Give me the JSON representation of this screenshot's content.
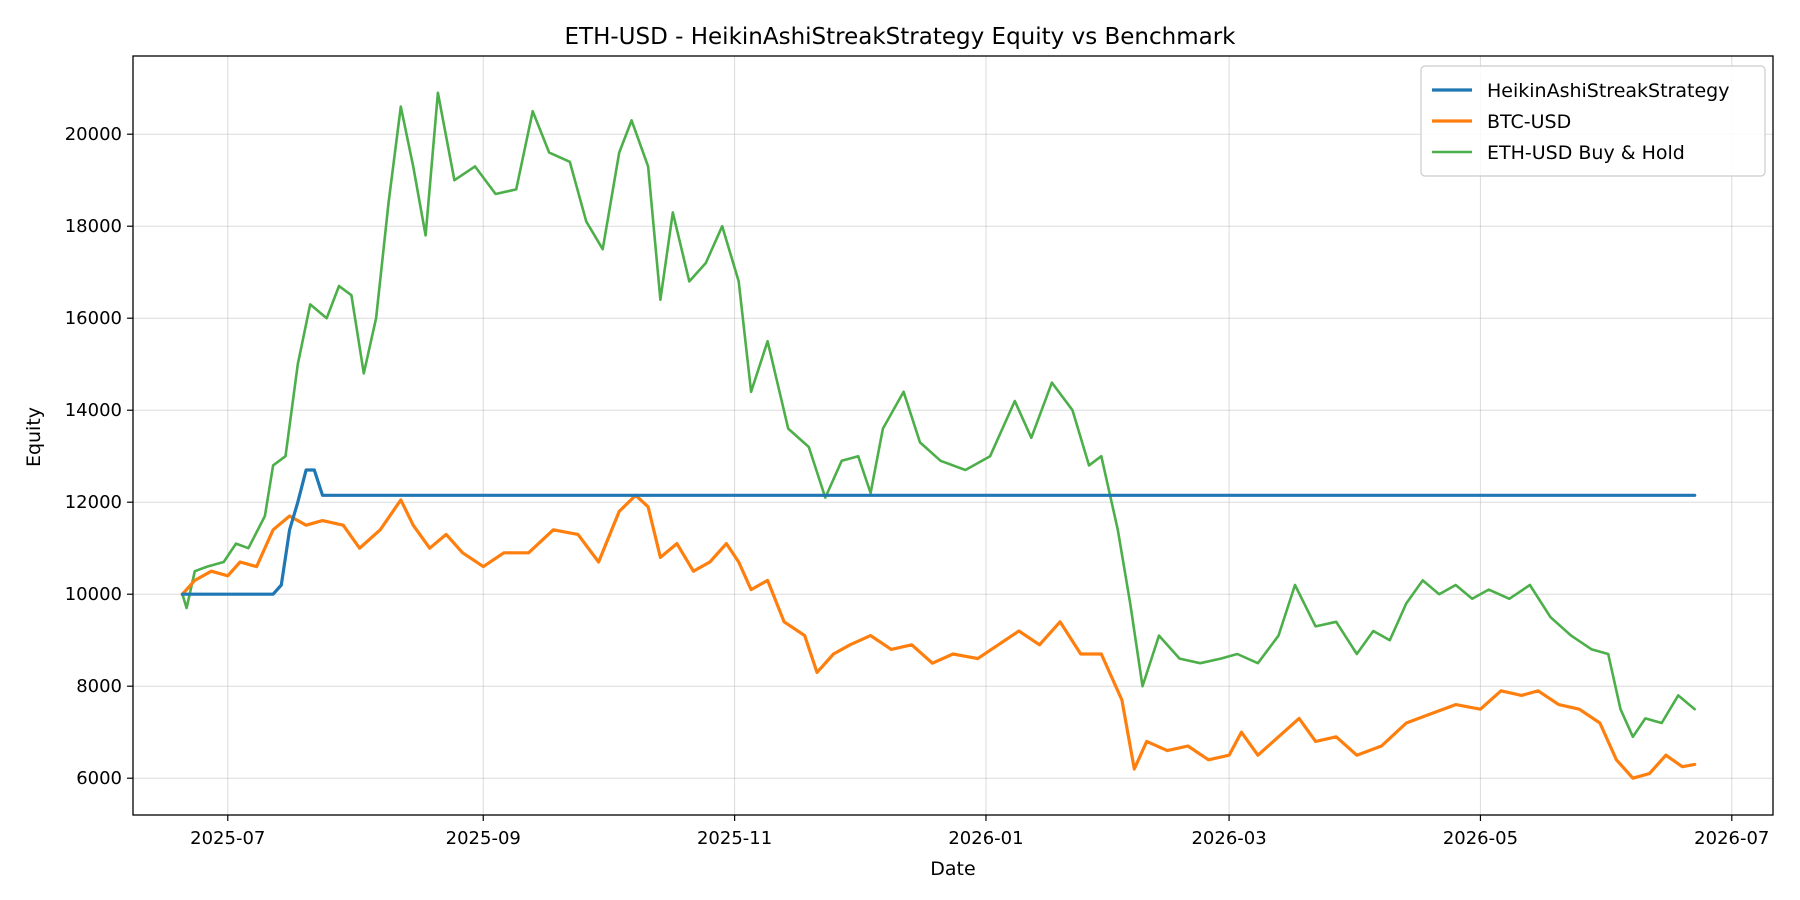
{
  "chart_data": {
    "type": "line",
    "title": "ETH-USD - HeikinAshiStreakStrategy Equity vs Benchmark",
    "xlabel": "Date",
    "ylabel": "Equity",
    "x_range": [
      "2025-06-08",
      "2026-07-11"
    ],
    "ylim": [
      5200,
      21700
    ],
    "x_ticks": [
      "2025-07",
      "2025-09",
      "2025-11",
      "2026-01",
      "2026-03",
      "2026-05",
      "2026-07"
    ],
    "y_ticks": [
      6000,
      8000,
      10000,
      12000,
      14000,
      16000,
      18000,
      20000
    ],
    "grid": true,
    "legend_position": "top-right",
    "colors": {
      "strategy": "#1f77b4",
      "btc": "#ff7f0e",
      "eth": "#4daf4a"
    },
    "series": [
      {
        "name": "HeikinAshiStreakStrategy",
        "color": "#1f77b4",
        "points": [
          [
            "2025-06-20",
            10000
          ],
          [
            "2025-07-12",
            10000
          ],
          [
            "2025-07-14",
            10200
          ],
          [
            "2025-07-16",
            11400
          ],
          [
            "2025-07-18",
            12000
          ],
          [
            "2025-07-20",
            12700
          ],
          [
            "2025-07-22",
            12700
          ],
          [
            "2025-07-24",
            12150
          ],
          [
            "2026-06-22",
            12150
          ]
        ]
      },
      {
        "name": "BTC-USD",
        "color": "#ff7f0e",
        "points": [
          [
            "2025-06-20",
            10000
          ],
          [
            "2025-06-23",
            10300
          ],
          [
            "2025-06-27",
            10500
          ],
          [
            "2025-07-01",
            10400
          ],
          [
            "2025-07-04",
            10700
          ],
          [
            "2025-07-08",
            10600
          ],
          [
            "2025-07-12",
            11400
          ],
          [
            "2025-07-16",
            11700
          ],
          [
            "2025-07-20",
            11500
          ],
          [
            "2025-07-24",
            11600
          ],
          [
            "2025-07-29",
            11500
          ],
          [
            "2025-08-02",
            11000
          ],
          [
            "2025-08-07",
            11400
          ],
          [
            "2025-08-12",
            12050
          ],
          [
            "2025-08-15",
            11500
          ],
          [
            "2025-08-19",
            11000
          ],
          [
            "2025-08-23",
            11300
          ],
          [
            "2025-08-27",
            10900
          ],
          [
            "2025-09-01",
            10600
          ],
          [
            "2025-09-06",
            10900
          ],
          [
            "2025-09-12",
            10900
          ],
          [
            "2025-09-18",
            11400
          ],
          [
            "2025-09-24",
            11300
          ],
          [
            "2025-09-29",
            10700
          ],
          [
            "2025-10-04",
            11800
          ],
          [
            "2025-10-08",
            12150
          ],
          [
            "2025-10-11",
            11900
          ],
          [
            "2025-10-14",
            10800
          ],
          [
            "2025-10-18",
            11100
          ],
          [
            "2025-10-22",
            10500
          ],
          [
            "2025-10-26",
            10700
          ],
          [
            "2025-10-30",
            11100
          ],
          [
            "2025-11-02",
            10700
          ],
          [
            "2025-11-05",
            10100
          ],
          [
            "2025-11-09",
            10300
          ],
          [
            "2025-11-13",
            9400
          ],
          [
            "2025-11-18",
            9100
          ],
          [
            "2025-11-21",
            8300
          ],
          [
            "2025-11-25",
            8700
          ],
          [
            "2025-11-29",
            8900
          ],
          [
            "2025-12-04",
            9100
          ],
          [
            "2025-12-09",
            8800
          ],
          [
            "2025-12-14",
            8900
          ],
          [
            "2025-12-19",
            8500
          ],
          [
            "2025-12-24",
            8700
          ],
          [
            "2025-12-30",
            8600
          ],
          [
            "2026-01-04",
            8900
          ],
          [
            "2026-01-09",
            9200
          ],
          [
            "2026-01-14",
            8900
          ],
          [
            "2026-01-19",
            9400
          ],
          [
            "2026-01-24",
            8700
          ],
          [
            "2026-01-29",
            8700
          ],
          [
            "2026-02-03",
            7700
          ],
          [
            "2026-02-06",
            6200
          ],
          [
            "2026-02-09",
            6800
          ],
          [
            "2026-02-14",
            6600
          ],
          [
            "2026-02-19",
            6700
          ],
          [
            "2026-02-24",
            6400
          ],
          [
            "2026-03-01",
            6500
          ],
          [
            "2026-03-04",
            7000
          ],
          [
            "2026-03-08",
            6500
          ],
          [
            "2026-03-13",
            6900
          ],
          [
            "2026-03-18",
            7300
          ],
          [
            "2026-03-22",
            6800
          ],
          [
            "2026-03-27",
            6900
          ],
          [
            "2026-04-01",
            6500
          ],
          [
            "2026-04-07",
            6700
          ],
          [
            "2026-04-13",
            7200
          ],
          [
            "2026-04-19",
            7400
          ],
          [
            "2026-04-25",
            7600
          ],
          [
            "2026-05-01",
            7500
          ],
          [
            "2026-05-06",
            7900
          ],
          [
            "2026-05-11",
            7800
          ],
          [
            "2026-05-15",
            7900
          ],
          [
            "2026-05-20",
            7600
          ],
          [
            "2026-05-25",
            7500
          ],
          [
            "2026-05-30",
            7200
          ],
          [
            "2026-06-03",
            6400
          ],
          [
            "2026-06-07",
            6000
          ],
          [
            "2026-06-11",
            6100
          ],
          [
            "2026-06-15",
            6500
          ],
          [
            "2026-06-19",
            6250
          ],
          [
            "2026-06-22",
            6300
          ]
        ]
      },
      {
        "name": "ETH-USD Buy & Hold",
        "color": "#4daf4a",
        "points": [
          [
            "2025-06-20",
            10000
          ],
          [
            "2025-06-21",
            9700
          ],
          [
            "2025-06-23",
            10500
          ],
          [
            "2025-06-26",
            10600
          ],
          [
            "2025-06-30",
            10700
          ],
          [
            "2025-07-03",
            11100
          ],
          [
            "2025-07-06",
            11000
          ],
          [
            "2025-07-10",
            11700
          ],
          [
            "2025-07-12",
            12800
          ],
          [
            "2025-07-15",
            13000
          ],
          [
            "2025-07-18",
            15000
          ],
          [
            "2025-07-21",
            16300
          ],
          [
            "2025-07-25",
            16000
          ],
          [
            "2025-07-28",
            16700
          ],
          [
            "2025-07-31",
            16500
          ],
          [
            "2025-08-03",
            14800
          ],
          [
            "2025-08-06",
            16000
          ],
          [
            "2025-08-09",
            18500
          ],
          [
            "2025-08-12",
            20600
          ],
          [
            "2025-08-15",
            19300
          ],
          [
            "2025-08-18",
            17800
          ],
          [
            "2025-08-21",
            20900
          ],
          [
            "2025-08-25",
            19000
          ],
          [
            "2025-08-30",
            19300
          ],
          [
            "2025-09-04",
            18700
          ],
          [
            "2025-09-09",
            18800
          ],
          [
            "2025-09-13",
            20500
          ],
          [
            "2025-09-17",
            19600
          ],
          [
            "2025-09-22",
            19400
          ],
          [
            "2025-09-26",
            18100
          ],
          [
            "2025-09-30",
            17500
          ],
          [
            "2025-10-04",
            19600
          ],
          [
            "2025-10-07",
            20300
          ],
          [
            "2025-10-11",
            19300
          ],
          [
            "2025-10-14",
            16400
          ],
          [
            "2025-10-17",
            18300
          ],
          [
            "2025-10-21",
            16800
          ],
          [
            "2025-10-25",
            17200
          ],
          [
            "2025-10-29",
            18000
          ],
          [
            "2025-11-02",
            16800
          ],
          [
            "2025-11-05",
            14400
          ],
          [
            "2025-11-09",
            15500
          ],
          [
            "2025-11-14",
            13600
          ],
          [
            "2025-11-19",
            13200
          ],
          [
            "2025-11-23",
            12100
          ],
          [
            "2025-11-27",
            12900
          ],
          [
            "2025-12-01",
            13000
          ],
          [
            "2025-12-04",
            12200
          ],
          [
            "2025-12-07",
            13600
          ],
          [
            "2025-12-12",
            14400
          ],
          [
            "2025-12-16",
            13300
          ],
          [
            "2025-12-21",
            12900
          ],
          [
            "2025-12-27",
            12700
          ],
          [
            "2026-01-02",
            13000
          ],
          [
            "2026-01-08",
            14200
          ],
          [
            "2026-01-12",
            13400
          ],
          [
            "2026-01-17",
            14600
          ],
          [
            "2026-01-22",
            14000
          ],
          [
            "2026-01-26",
            12800
          ],
          [
            "2026-01-29",
            13000
          ],
          [
            "2026-02-02",
            11400
          ],
          [
            "2026-02-05",
            9800
          ],
          [
            "2026-02-08",
            8000
          ],
          [
            "2026-02-12",
            9100
          ],
          [
            "2026-02-17",
            8600
          ],
          [
            "2026-02-22",
            8500
          ],
          [
            "2026-02-27",
            8600
          ],
          [
            "2026-03-03",
            8700
          ],
          [
            "2026-03-08",
            8500
          ],
          [
            "2026-03-13",
            9100
          ],
          [
            "2026-03-17",
            10200
          ],
          [
            "2026-03-22",
            9300
          ],
          [
            "2026-03-27",
            9400
          ],
          [
            "2026-04-01",
            8700
          ],
          [
            "2026-04-05",
            9200
          ],
          [
            "2026-04-09",
            9000
          ],
          [
            "2026-04-13",
            9800
          ],
          [
            "2026-04-17",
            10300
          ],
          [
            "2026-04-21",
            10000
          ],
          [
            "2026-04-25",
            10200
          ],
          [
            "2026-04-29",
            9900
          ],
          [
            "2026-05-03",
            10100
          ],
          [
            "2026-05-08",
            9900
          ],
          [
            "2026-05-13",
            10200
          ],
          [
            "2026-05-18",
            9500
          ],
          [
            "2026-05-23",
            9100
          ],
          [
            "2026-05-28",
            8800
          ],
          [
            "2026-06-01",
            8700
          ],
          [
            "2026-06-04",
            7500
          ],
          [
            "2026-06-07",
            6900
          ],
          [
            "2026-06-10",
            7300
          ],
          [
            "2026-06-14",
            7200
          ],
          [
            "2026-06-18",
            7800
          ],
          [
            "2026-06-22",
            7500
          ]
        ]
      }
    ]
  }
}
